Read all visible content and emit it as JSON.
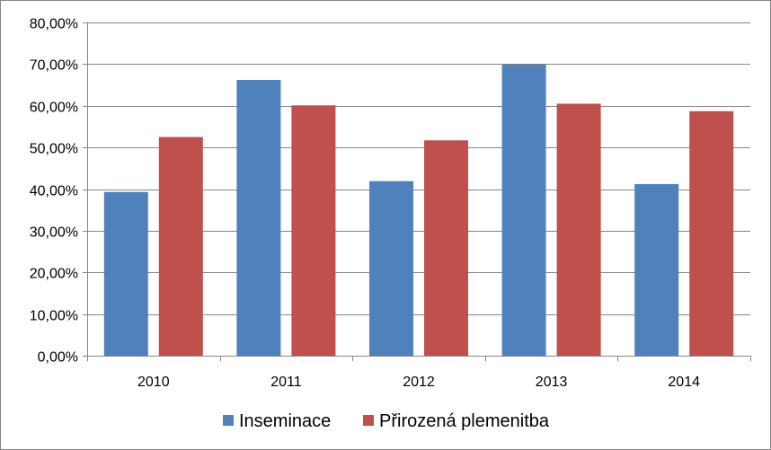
{
  "chart_data": {
    "type": "bar",
    "categories": [
      "2010",
      "2011",
      "2012",
      "2013",
      "2014"
    ],
    "series": [
      {
        "name": "Inseminace",
        "values": [
          0.393,
          0.662,
          0.419,
          0.699,
          0.412
        ],
        "color": "#4f81bd"
      },
      {
        "name": "Přirozená plemenitba",
        "values": [
          0.525,
          0.601,
          0.517,
          0.605,
          0.587
        ],
        "color": "#c0504d"
      }
    ],
    "ylim": [
      0,
      0.8
    ],
    "yticks": [
      0,
      0.1,
      0.2,
      0.3,
      0.4,
      0.5,
      0.6,
      0.7,
      0.8
    ],
    "ytick_labels": [
      "0,00%",
      "10,00%",
      "20,00%",
      "30,00%",
      "40,00%",
      "50,00%",
      "60,00%",
      "70,00%",
      "80,00%"
    ],
    "grid": true,
    "legend_position": "bottom"
  }
}
